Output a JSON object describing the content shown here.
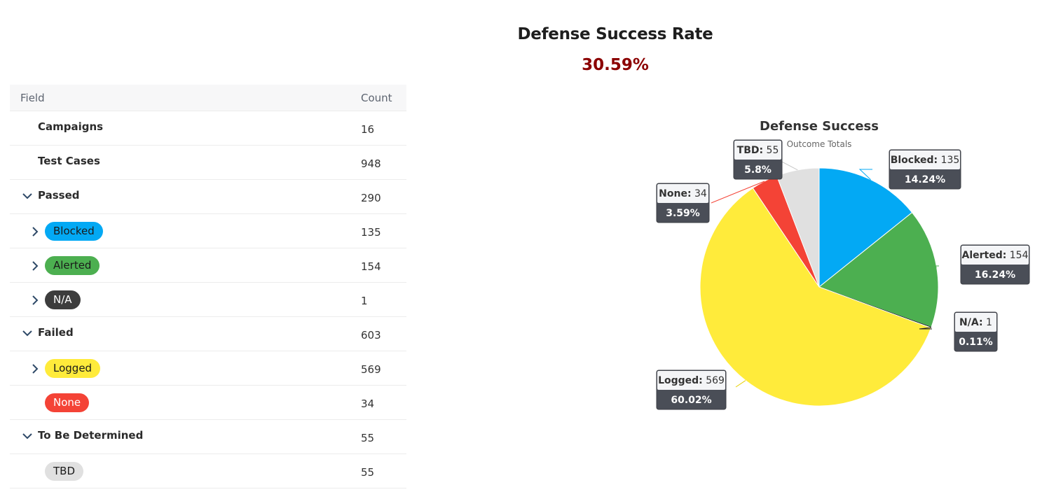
{
  "headline": {
    "title": "Defense Success Rate",
    "rate": "30.59%",
    "rate_color": "#8b0000"
  },
  "table": {
    "headers": {
      "field": "Field",
      "count": "Count"
    },
    "rows": [
      {
        "label": "Campaigns",
        "count": "16",
        "kind": "plain",
        "chevron": "none"
      },
      {
        "label": "Test Cases",
        "count": "948",
        "kind": "plain",
        "chevron": "none"
      },
      {
        "label": "Passed",
        "count": "290",
        "kind": "group",
        "chevron": "down"
      },
      {
        "label": "Blocked",
        "count": "135",
        "kind": "pill",
        "chevron": "right",
        "bg": "#03a9f4",
        "fg": "#1a1a1a"
      },
      {
        "label": "Alerted",
        "count": "154",
        "kind": "pill",
        "chevron": "right",
        "bg": "#4caf50",
        "fg": "#1a1a1a"
      },
      {
        "label": "N/A",
        "count": "1",
        "kind": "pill",
        "chevron": "right",
        "bg": "#3d3d3d",
        "fg": "#ffffff"
      },
      {
        "label": "Failed",
        "count": "603",
        "kind": "group",
        "chevron": "down"
      },
      {
        "label": "Logged",
        "count": "569",
        "kind": "pill",
        "chevron": "right",
        "bg": "#ffeb3b",
        "fg": "#1a1a1a"
      },
      {
        "label": "None",
        "count": "34",
        "kind": "pill",
        "chevron": "none",
        "bg": "#f44336",
        "fg": "#ffffff"
      },
      {
        "label": "To Be Determined",
        "count": "55",
        "kind": "group",
        "chevron": "down"
      },
      {
        "label": "TBD",
        "count": "55",
        "kind": "pill",
        "chevron": "none",
        "bg": "#e0e0e0",
        "fg": "#1a1a1a"
      }
    ]
  },
  "chart_data": {
    "type": "pie",
    "title": "Defense Success",
    "subtitle": "Outcome Totals",
    "slices": [
      {
        "name": "Blocked",
        "value": 135,
        "percent": "14.24%",
        "color": "#03a9f4",
        "label_side": "right"
      },
      {
        "name": "Alerted",
        "value": 154,
        "percent": "16.24%",
        "color": "#4caf50",
        "label_side": "right"
      },
      {
        "name": "N/A",
        "value": 1,
        "percent": "0.11%",
        "color": "#212121",
        "label_side": "right"
      },
      {
        "name": "Logged",
        "value": 569,
        "percent": "60.02%",
        "color": "#ffeb3b",
        "label_side": "left"
      },
      {
        "name": "None",
        "value": 34,
        "percent": "3.59%",
        "color": "#f44336",
        "label_side": "left"
      },
      {
        "name": "TBD",
        "value": 55,
        "percent": "5.8%",
        "color": "#e0e0e0",
        "label_side": "left"
      }
    ]
  }
}
